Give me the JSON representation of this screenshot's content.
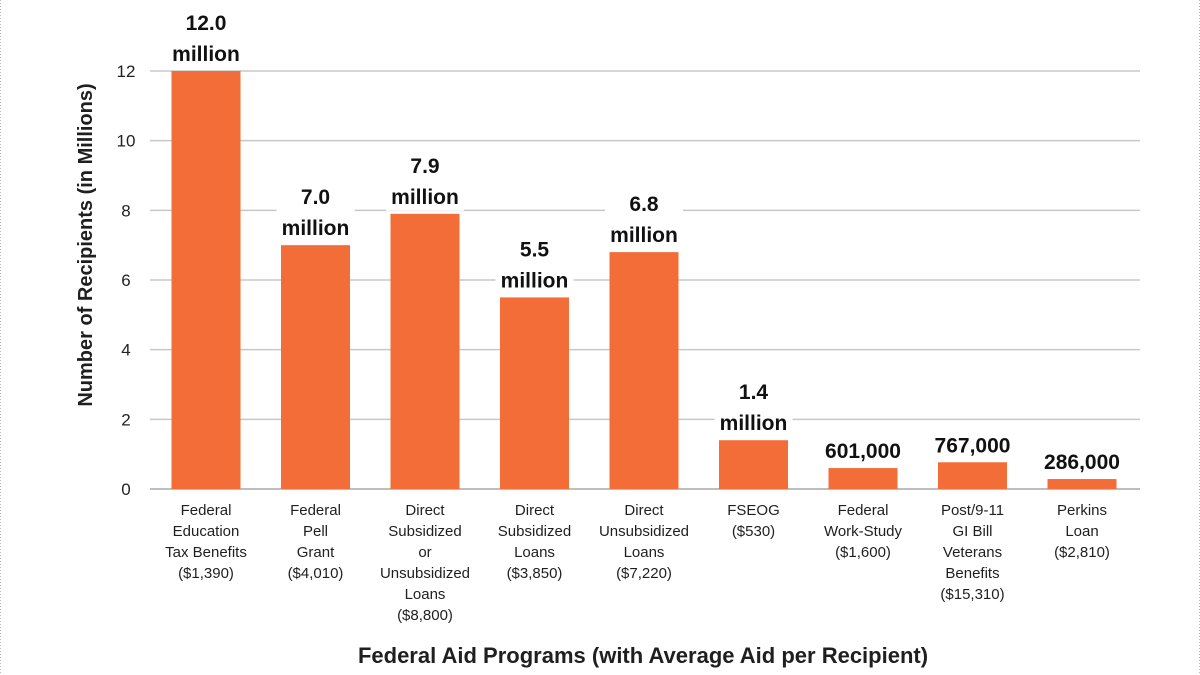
{
  "colors": {
    "bar": "#f26d37",
    "background": "#ffffff",
    "grid": "#c8c8c8",
    "text": "#1f1f1f"
  },
  "chart_data": {
    "type": "bar",
    "title": "",
    "xlabel": "Federal Aid Programs (with Average Aid per Recipient)",
    "ylabel": "Number of Recipients (in Millions)",
    "ylim": [
      0,
      12
    ],
    "yticks": [
      0,
      2,
      4,
      6,
      8,
      10,
      12
    ],
    "grid": true,
    "categories": [
      [
        "Federal",
        "Education",
        "Tax Benefits",
        "($1,390)"
      ],
      [
        "Federal",
        "Pell",
        "Grant",
        "($4,010)"
      ],
      [
        "Direct",
        "Subsidized",
        "or",
        "Unsubsidized",
        "Loans",
        "($8,800)"
      ],
      [
        "Direct",
        "Subsidized",
        "Loans",
        "($3,850)"
      ],
      [
        "Direct",
        "Unsubsidized",
        "Loans",
        "($7,220)"
      ],
      [
        "FSEOG",
        "($530)"
      ],
      [
        "Federal",
        "Work-Study",
        "($1,600)"
      ],
      [
        "Post/9-11",
        "GI Bill",
        "Veterans",
        "Benefits",
        "($15,310)"
      ],
      [
        "Perkins",
        "Loan",
        "($2,810)"
      ]
    ],
    "values": [
      12.0,
      7.0,
      7.9,
      5.5,
      6.8,
      1.4,
      0.601,
      0.767,
      0.286
    ],
    "data_labels": [
      [
        "12.0",
        "million"
      ],
      [
        "7.0",
        "million"
      ],
      [
        "7.9",
        "million"
      ],
      [
        "5.5",
        "million"
      ],
      [
        "6.8",
        "million"
      ],
      [
        "1.4",
        "million"
      ],
      [
        "601,000"
      ],
      [
        "767,000"
      ],
      [
        "286,000"
      ]
    ]
  }
}
